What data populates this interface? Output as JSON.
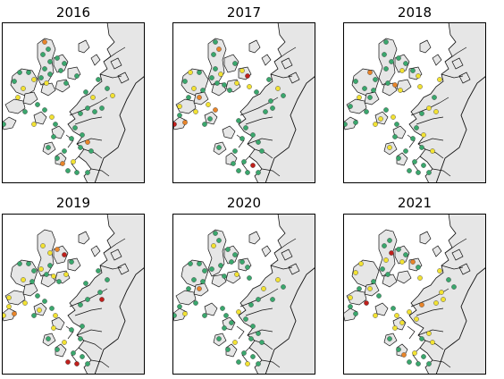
{
  "colors": {
    "green": "#3aa76d",
    "yellow": "#f2e233",
    "orange": "#e8852a",
    "red": "#c0201c",
    "land": "#e6e6e6",
    "sea": "#ffffff",
    "coast": "#111111"
  },
  "panels": [
    {
      "year": "2016",
      "sites": {
        "green": 38,
        "yellow": 9,
        "orange": 3,
        "red": 0
      }
    },
    {
      "year": "2017",
      "sites": {
        "green": 34,
        "yellow": 10,
        "orange": 4,
        "red": 3
      }
    },
    {
      "year": "2018",
      "sites": {
        "green": 32,
        "yellow": 14,
        "orange": 2,
        "red": 0
      }
    },
    {
      "year": "2019",
      "sites": {
        "green": 26,
        "yellow": 14,
        "orange": 2,
        "red": 4
      }
    },
    {
      "year": "2020",
      "sites": {
        "green": 40,
        "yellow": 8,
        "orange": 1,
        "red": 0
      }
    },
    {
      "year": "2021",
      "sites": {
        "green": 22,
        "yellow": 20,
        "orange": 3,
        "red": 2
      }
    }
  ]
}
